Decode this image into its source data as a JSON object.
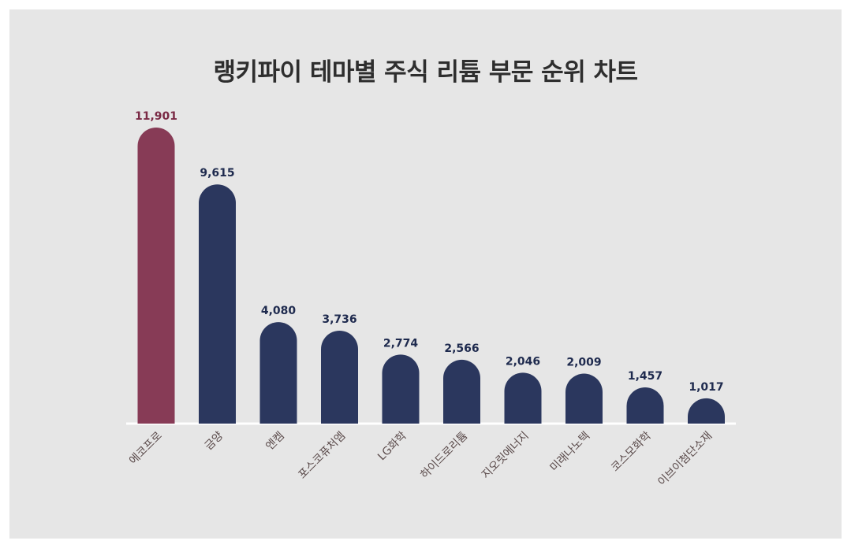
{
  "chart_data": {
    "type": "bar",
    "title": "랭키파이 테마별 주식 리튬 부문 순위 차트",
    "xlabel": "",
    "ylabel": "",
    "categories": [
      "에코프로",
      "금양",
      "엔켐",
      "포스코퓨처엠",
      "LG화학",
      "하이드로리튬",
      "지오릿에너지",
      "미래나노텍",
      "코스모화학",
      "이브이첨단소재"
    ],
    "values": [
      11901,
      9615,
      4080,
      3736,
      2774,
      2566,
      2046,
      2009,
      1457,
      1017
    ],
    "value_labels": [
      "11,901",
      "9,615",
      "4,080",
      "3,736",
      "2,774",
      "2,566",
      "2,046",
      "2,009",
      "1,457",
      "1,017"
    ],
    "ylim": [
      0,
      11901
    ],
    "grid": false,
    "legend": "none",
    "colors": {
      "highlight": "#873b56",
      "bar": "#2b375e",
      "highlight_label": "#7a2a45",
      "label": "#1e2a4e",
      "category_label": "#5a4a4a",
      "baseline": "#ffffff",
      "background": "#e6e6e6"
    }
  }
}
